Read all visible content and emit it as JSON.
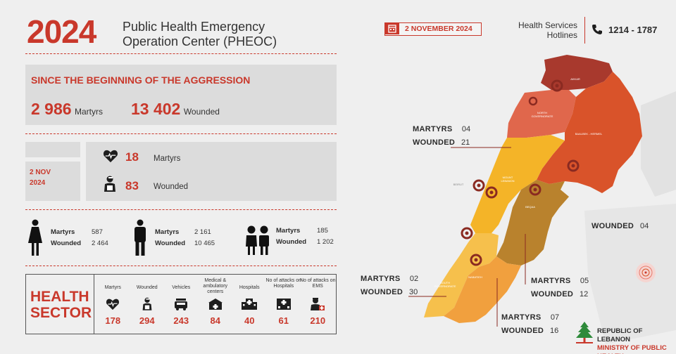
{
  "header": {
    "year": "2024",
    "org_line1": "Public Health Emergency",
    "org_line2": "Operation Center (PHEOC)",
    "date": "2 NOVEMBER 2024",
    "hotline_line1": "Health Services",
    "hotline_line2": "Hotlines",
    "hotline_number": "1214 - 1787"
  },
  "since": {
    "title": "SINCE THE BEGINNING OF THE AGGRESSION",
    "martyrs_value": "2 986",
    "martyrs_label": "Martyrs",
    "wounded_value": "13 402",
    "wounded_label": "Wounded"
  },
  "daily": {
    "date_line1": "2 NOV",
    "date_line2": "2024",
    "martyrs_value": "18",
    "martyrs_label": "Martyrs",
    "wounded_value": "83",
    "wounded_label": "Wounded"
  },
  "groups": [
    {
      "icon": "woman-icon",
      "martyrs_label": "Martyrs",
      "martyrs_value": "587",
      "wounded_label": "Wounded",
      "wounded_value": "2 464"
    },
    {
      "icon": "man-icon",
      "martyrs_label": "Martyrs",
      "martyrs_value": "2 161",
      "wounded_label": "Wounded",
      "wounded_value": "10 465"
    },
    {
      "icon": "children-icon",
      "martyrs_label": "Martyrs",
      "martyrs_value": "185",
      "wounded_label": "Wounded",
      "wounded_value": "1 202"
    }
  ],
  "health_sector": {
    "title_line1": "HEALTH",
    "title_line2": "SECTOR",
    "columns": [
      {
        "header": "Martyrs",
        "icon": "heart-pulse-icon",
        "value": "178"
      },
      {
        "header": "Wounded",
        "icon": "injured-person-icon",
        "value": "294"
      },
      {
        "header": "Vehicles",
        "icon": "ambulance-icon",
        "value": "243"
      },
      {
        "header": "Medical & ambulatory centers",
        "icon": "medical-center-icon",
        "value": "84"
      },
      {
        "header": "Hospitals",
        "icon": "hospital-icon",
        "value": "40"
      },
      {
        "header": "No of attacks on Hospitals",
        "icon": "hospital-attack-icon",
        "value": "61"
      },
      {
        "header": "No of attacks on EMS",
        "icon": "ems-worker-icon",
        "value": "210"
      }
    ]
  },
  "map": {
    "regions": [
      "AKKAR",
      "NORTH GOVERNORATE",
      "BAALBEK - HERMEL",
      "MOUNT LEBANON",
      "BEIRUT",
      "BEQAA",
      "SOUTH GOVERNORATE",
      "NABATIEH"
    ],
    "callouts": [
      {
        "name": "north",
        "martyrs_label": "MARTYRS",
        "martyrs_value": "04",
        "wounded_label": "WOUNDED",
        "wounded_value": "21"
      },
      {
        "name": "baalbek",
        "wounded_label": "WOUNDED",
        "wounded_value": "04"
      },
      {
        "name": "beqaa",
        "martyrs_label": "MARTYRS",
        "martyrs_value": "05",
        "wounded_label": "WOUNDED",
        "wounded_value": "12"
      },
      {
        "name": "south",
        "martyrs_label": "MARTYRS",
        "martyrs_value": "02",
        "wounded_label": "WOUNDED",
        "wounded_value": "30"
      },
      {
        "name": "nabatieh",
        "martyrs_label": "MARTYRS",
        "martyrs_value": "07",
        "wounded_label": "WOUNDED",
        "wounded_value": "16"
      }
    ],
    "colors": {
      "akkar": "#a8392d",
      "north": "#e0674c",
      "baalbek": "#d9532a",
      "mount": "#f4b428",
      "beqaa": "#b9822d",
      "south": "#f6c04c",
      "nabatieh": "#f1a03e",
      "marker": "#8a2a21"
    }
  },
  "ministry": {
    "line1": "REPUBLIC OF LEBANON",
    "line2": "MINISTRY OF PUBLIC HEALTH"
  }
}
